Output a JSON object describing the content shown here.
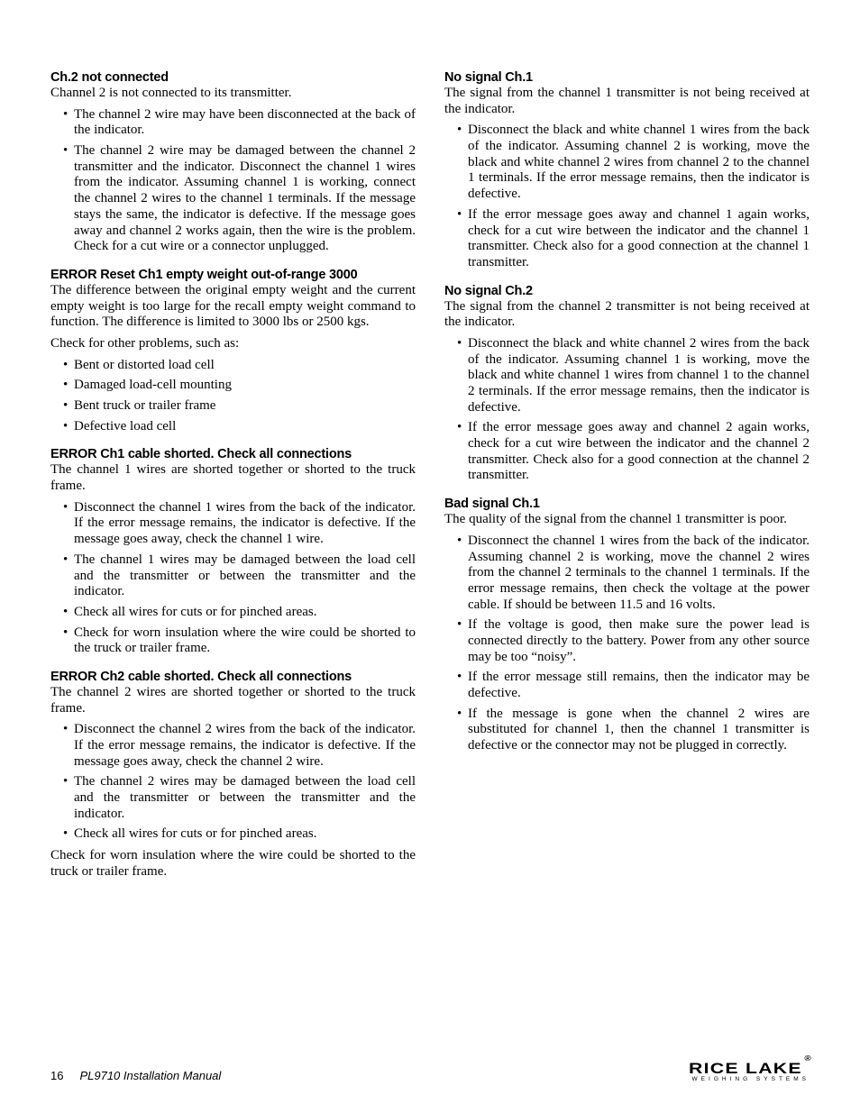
{
  "left": {
    "s1": {
      "heading": "Ch.2 not connected",
      "p1": "Channel 2 is not connected to its transmitter.",
      "b1": "The channel 2 wire may have been disconnected at the back of the indicator.",
      "b2": "The channel 2 wire may be damaged between the channel 2 transmitter and the indicator. Disconnect the channel 1 wires from the indicator. Assuming channel 1 is working, connect the channel 2 wires to the channel 1 terminals. If the message stays the same, the indicator is defective. If the message goes away and channel 2 works again, then the wire is the problem. Check for a cut wire or a connector unplugged."
    },
    "s2": {
      "heading": "ERROR Reset Ch1 empty weight out-of-range 3000",
      "p1": "The difference between the original empty weight and the current empty weight is too large for the recall empty weight command to function. The difference is limited to 3000 lbs or 2500 kgs.",
      "p2": "Check for other problems, such as:",
      "b1": "Bent or distorted load cell",
      "b2": "Damaged load-cell mounting",
      "b3": "Bent truck or trailer frame",
      "b4": "Defective load cell"
    },
    "s3": {
      "heading": "ERROR Ch1 cable shorted. Check all connections",
      "p1": "The channel 1 wires are shorted together or shorted to the truck frame.",
      "b1": "Disconnect the channel 1 wires from the back of the indicator. If the error message remains, the indicator is defective. If the message goes away, check the channel 1 wire.",
      "b2": "The channel 1 wires may be damaged between the load cell and the transmitter or between the transmitter and the indicator.",
      "b3": "Check all wires for cuts or for pinched areas.",
      "b4": "Check for worn insulation where the wire could be shorted to the truck or trailer frame."
    },
    "s4": {
      "heading": "ERROR Ch2 cable shorted. Check all connections",
      "p1": "The channel 2 wires are shorted together or shorted to the truck frame.",
      "b1": "Disconnect the channel 2 wires from the back of the indicator. If the error message remains, the indicator is defective. If the message goes away, check the channel 2 wire.",
      "b2": "The channel 2 wires may be damaged between the load cell and the transmitter or between the transmitter and the indicator.",
      "b3": "Check all wires for cuts or for pinched areas.",
      "p2": "Check for worn insulation where the wire could be shorted to the truck or trailer frame."
    }
  },
  "right": {
    "s1": {
      "heading": "No signal Ch.1",
      "p1": "The signal from the channel 1 transmitter is not being received at the indicator.",
      "b1": "Disconnect the black and white channel 1 wires from the back of the indicator. Assuming channel 2 is working, move the black and white channel 2 wires from channel 2 to the channel 1 terminals. If the error message remains, then the indicator is defective.",
      "b2": "If the error message goes away and channel 1 again works, check for a cut wire between the indicator and the channel 1 transmitter. Check also for a good connection at the channel 1 transmitter."
    },
    "s2": {
      "heading": "No signal Ch.2",
      "p1": "The signal from the channel 2 transmitter is not being received at the indicator.",
      "b1": "Disconnect the black and white channel 2 wires from the back of the indicator. Assuming channel 1 is working, move the black and white channel 1 wires from channel 1 to the channel 2 terminals. If the error message remains, then the indicator is defective.",
      "b2": "If the error message goes away and channel 2 again works, check for a cut wire between the indicator and the channel 2 transmitter. Check also for a good connection at the channel 2 transmitter."
    },
    "s3": {
      "heading": "Bad signal Ch.1",
      "p1": "The quality of the signal from the channel 1 transmitter is poor.",
      "b1": "Disconnect the channel 1 wires from the back of the indicator. Assuming channel 2 is working, move the channel 2 wires from the channel 2 terminals to the channel 1 terminals. If the error message remains, then check the voltage at the power cable. If should be between 11.5 and 16 volts.",
      "b2": "If the voltage is good, then make sure the power lead is connected directly to the battery. Power from any other source may be too “noisy”.",
      "b3": "If the error message still remains, then the indicator may be defective.",
      "b4": "If the message is gone when the channel 2 wires are substituted for channel 1, then the channel 1 transmitter is defective or the connector may not be plugged in correctly."
    }
  },
  "footer": {
    "page": "16",
    "title": "PL9710 Installation Manual",
    "logo_main": "RICE LAKE",
    "logo_sub": "WEIGHING SYSTEMS"
  }
}
